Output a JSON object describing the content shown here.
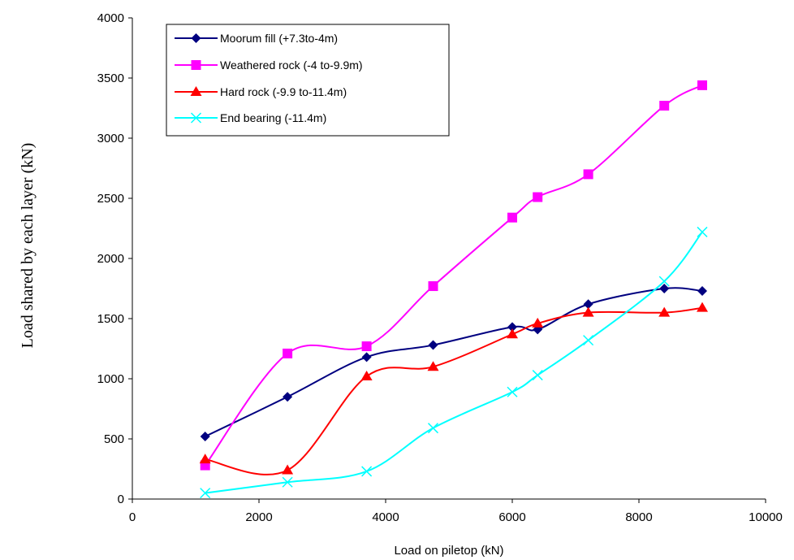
{
  "chart_data": {
    "type": "line",
    "title": "",
    "xlabel": "Load on piletop (kN)",
    "ylabel": "Load shared by each layer (kN)",
    "xlim": [
      0,
      10000
    ],
    "ylim": [
      0,
      4000
    ],
    "xticks": [
      0,
      2000,
      4000,
      6000,
      8000,
      10000
    ],
    "yticks": [
      0,
      500,
      1000,
      1500,
      2000,
      2500,
      3000,
      3500,
      4000
    ],
    "grid": false,
    "legend_position": "top-left",
    "smooth": true,
    "series": [
      {
        "name": "Moorum fill (+7.3to-4m)",
        "color": "#000080",
        "marker": "diamond",
        "x": [
          1150,
          2450,
          3700,
          4750,
          6000,
          6400,
          7200,
          8400,
          9000
        ],
        "y": [
          520,
          850,
          1180,
          1280,
          1430,
          1410,
          1620,
          1750,
          1730
        ]
      },
      {
        "name": "Weathered rock (-4 to-9.9m)",
        "color": "#ff00ff",
        "marker": "square",
        "x": [
          1150,
          2450,
          3700,
          4750,
          6000,
          6400,
          7200,
          8400,
          9000
        ],
        "y": [
          280,
          1210,
          1270,
          1770,
          2340,
          2510,
          2700,
          3270,
          3440
        ]
      },
      {
        "name": "Hard rock (-9.9 to-11.4m)",
        "color": "#ff0000",
        "marker": "triangle",
        "x": [
          1150,
          2450,
          3700,
          4750,
          6000,
          6400,
          7200,
          8400,
          9000
        ],
        "y": [
          330,
          240,
          1020,
          1100,
          1370,
          1460,
          1550,
          1550,
          1590
        ]
      },
      {
        "name": "End bearing (-11.4m)",
        "color": "#00ffff",
        "marker": "x",
        "x": [
          1150,
          2450,
          3700,
          4750,
          6000,
          6400,
          7200,
          8400,
          9000
        ],
        "y": [
          50,
          140,
          230,
          590,
          890,
          1030,
          1320,
          1810,
          2220
        ]
      }
    ]
  }
}
